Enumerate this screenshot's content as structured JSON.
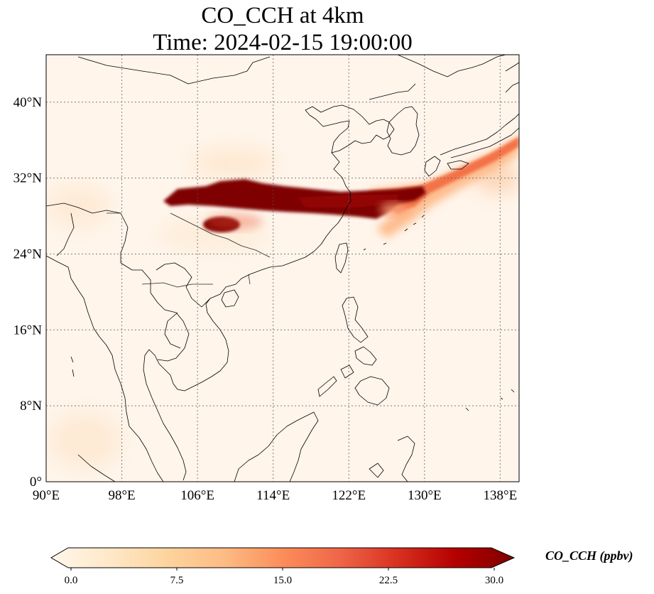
{
  "map": {
    "title_line1": "CO_CCH at 4km",
    "title_line2": "Time: 2024-02-15 19:00:00",
    "region": "East and Southeast Asia",
    "extent": {
      "lon_min": 90,
      "lon_max": 140,
      "lat_min": 0,
      "lat_max": 45
    },
    "lon_ticks": [
      90,
      98,
      106,
      114,
      122,
      130,
      138
    ],
    "lon_tick_labels": [
      "90°E",
      "98°E",
      "106°E",
      "114°E",
      "122°E",
      "130°E",
      "138°E"
    ],
    "lat_ticks": [
      0,
      8,
      16,
      24,
      32,
      40
    ],
    "lat_tick_labels": [
      "0°",
      "8°N",
      "16°N",
      "24°N",
      "32°N",
      "40°N"
    ],
    "gridlines": "dotted",
    "background_color": "#fff5eb",
    "plume": {
      "description": "high CO concentration band",
      "main_band_lon_range": [
        102,
        126
      ],
      "main_band_lat_range": [
        27.5,
        31.5
      ],
      "secondary_blob_center": [
        109.5,
        27.5
      ],
      "northeast_tail_lon_range": [
        126,
        140
      ],
      "northeast_tail_lat_range": [
        29,
        37
      ]
    }
  },
  "colorbar": {
    "label": "CO_CCH (ppbv)",
    "colormap": "OrRd",
    "min": 0.0,
    "max": 30.0,
    "ticks": [
      0.0,
      7.5,
      15.0,
      22.5,
      30.0
    ],
    "tick_labels": [
      "0.0",
      "7.5",
      "15.0",
      "22.5",
      "30.0"
    ],
    "extend": "both",
    "stops": [
      "#fff7ec",
      "#fee8c8",
      "#fdd49e",
      "#fdbb84",
      "#fc8d59",
      "#ef6548",
      "#d7301f",
      "#b30000",
      "#7f0000"
    ]
  }
}
